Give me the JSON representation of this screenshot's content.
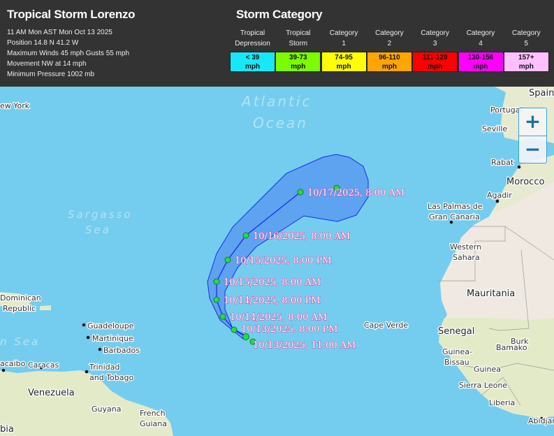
{
  "header": {
    "title": "Tropical Storm Lorenzo",
    "info": [
      "11 AM Mon AST Mon Oct 13 2025",
      "Position 14.8 N 41.2 W",
      "Maximum Winds 45 mph Gusts 55 mph",
      "Movement NW at 14 mph",
      "Minimum Pressure 1002 mb"
    ]
  },
  "legend": {
    "title": "Storm Category",
    "categories": [
      {
        "l1": "Tropical",
        "l2": "Depression",
        "range": "< 39",
        "unit": "mph",
        "color": "#16e8f7"
      },
      {
        "l1": "Tropical",
        "l2": "Storm",
        "range": "39-73",
        "unit": "mph",
        "color": "#7cfc00"
      },
      {
        "l1": "Category",
        "l2": "1",
        "range": "74-95",
        "unit": "mph",
        "color": "#ffff00"
      },
      {
        "l1": "Category",
        "l2": "2",
        "range": "96-110",
        "unit": "mph",
        "color": "#ffa500"
      },
      {
        "l1": "Category",
        "l2": "3",
        "range": "111-129",
        "unit": "mph",
        "color": "#ff0000"
      },
      {
        "l1": "Category",
        "l2": "4",
        "range": "130-156",
        "unit": "mph",
        "color": "#ff00ff"
      },
      {
        "l1": "Category",
        "l2": "5",
        "range": "157+",
        "unit": "mph",
        "color": "#ffc0ff"
      }
    ]
  },
  "map": {
    "seas": [
      "Atlantic",
      "Ocean",
      "Sargasso",
      "Sea",
      "n Sea"
    ],
    "places": [
      "Spain",
      "Portugal",
      "Seville",
      "Rabat",
      "Morocco",
      "Agadir",
      "Las Palmas de",
      "Gran Canaria",
      "Western",
      "Sahara",
      "Mauritania",
      "Senegal",
      "Cape Verde",
      "Guinea-",
      "Bissau",
      "Guinea",
      "Bamako",
      "Sierra Leone",
      "Liberia",
      "Abidjan",
      "Burk",
      "ew York",
      "Dominican",
      "Republic",
      "Guadeloupe",
      "Martinique",
      "Barbados",
      "Trinidad",
      "and Tobago",
      "Caracas",
      "acaibo",
      "Venezuela",
      "Guyana",
      "French",
      "Guiana",
      "bia"
    ],
    "track": [
      "10/17/2025, 8:00 AM",
      "10/16/2025, 8:00 AM",
      "10/15/2025, 8:00 PM",
      "10/15/2025, 8:00 AM",
      "10/14/2025, 8:00 PM",
      "10/14/2025, 8:00 AM",
      "10/13/2025, 8:00 PM",
      "10/13/2025, 11:00 AM"
    ],
    "zoom_in": "+",
    "zoom_out": "−",
    "colors": {
      "cone": "#5b9ff0",
      "cone_border": "#1a2bf0",
      "point": "#22dd44",
      "ocean": "#74cdee"
    }
  }
}
